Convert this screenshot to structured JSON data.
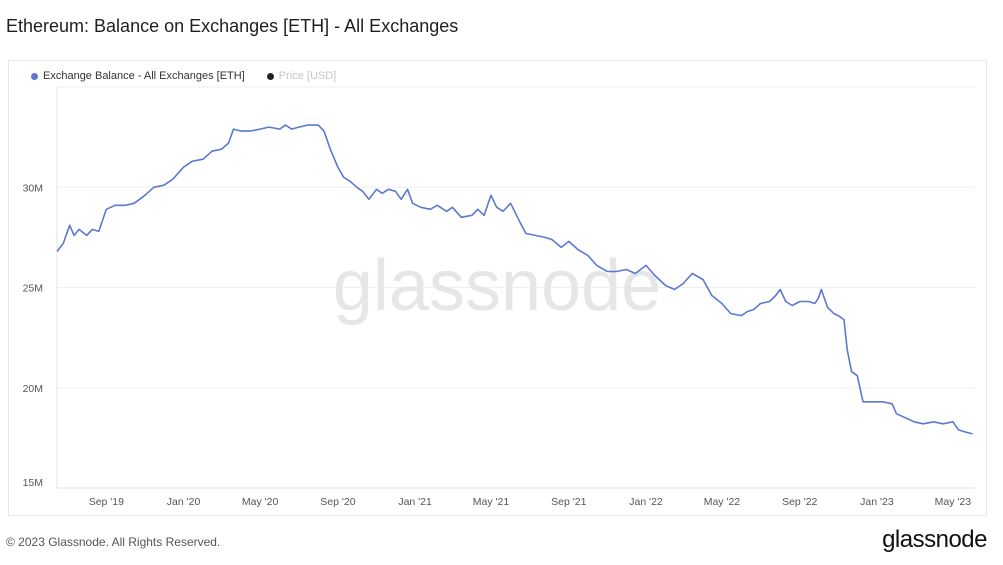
{
  "title": "Ethereum: Balance on Exchanges [ETH] - All Exchanges",
  "legend": {
    "items": [
      {
        "label": "Exchange Balance - All Exchanges [ETH]",
        "color": "#5b79cf",
        "active": true
      },
      {
        "label": "Price [USD]",
        "color": "#222222",
        "active": false
      }
    ]
  },
  "watermark": "glassnode",
  "footer": {
    "copyright": "© 2023 Glassnode. All Rights Reserved.",
    "logo": "glassnode"
  },
  "chart_data": {
    "type": "line",
    "title": "Ethereum: Balance on Exchanges [ETH] - All Exchanges",
    "xlabel": "",
    "ylabel": "",
    "ylim": [
      15000000,
      35000000
    ],
    "xlim": [
      "2019-06-15",
      "2023-06-05"
    ],
    "y_ticks": [
      {
        "value": 15000000,
        "label": "15M"
      },
      {
        "value": 20000000,
        "label": "20M"
      },
      {
        "value": 25000000,
        "label": "25M"
      },
      {
        "value": 30000000,
        "label": "30M"
      }
    ],
    "x_ticks": [
      {
        "value": "2019-09-01",
        "label": "Sep '19"
      },
      {
        "value": "2020-01-01",
        "label": "Jan '20"
      },
      {
        "value": "2020-05-01",
        "label": "May '20"
      },
      {
        "value": "2020-09-01",
        "label": "Sep '20"
      },
      {
        "value": "2021-01-01",
        "label": "Jan '21"
      },
      {
        "value": "2021-05-01",
        "label": "May '21"
      },
      {
        "value": "2021-09-01",
        "label": "Sep '21"
      },
      {
        "value": "2022-01-01",
        "label": "Jan '22"
      },
      {
        "value": "2022-05-01",
        "label": "May '22"
      },
      {
        "value": "2022-09-01",
        "label": "Sep '22"
      },
      {
        "value": "2023-01-01",
        "label": "Jan '23"
      },
      {
        "value": "2023-05-01",
        "label": "May '23"
      }
    ],
    "grid": {
      "horizontal": true,
      "vertical": false
    },
    "legend_position": "top-left",
    "series": [
      {
        "name": "Exchange Balance - All Exchanges [ETH]",
        "color": "#5b79cf",
        "points": [
          [
            "2019-06-15",
            26800000
          ],
          [
            "2019-06-25",
            27200000
          ],
          [
            "2019-07-05",
            28100000
          ],
          [
            "2019-07-12",
            27600000
          ],
          [
            "2019-07-20",
            27900000
          ],
          [
            "2019-08-01",
            27600000
          ],
          [
            "2019-08-10",
            27900000
          ],
          [
            "2019-08-20",
            27800000
          ],
          [
            "2019-09-01",
            28900000
          ],
          [
            "2019-09-15",
            29100000
          ],
          [
            "2019-10-01",
            29100000
          ],
          [
            "2019-10-15",
            29200000
          ],
          [
            "2019-11-01",
            29600000
          ],
          [
            "2019-11-15",
            30000000
          ],
          [
            "2019-12-01",
            30100000
          ],
          [
            "2019-12-15",
            30400000
          ],
          [
            "2020-01-01",
            31000000
          ],
          [
            "2020-01-15",
            31300000
          ],
          [
            "2020-02-01",
            31400000
          ],
          [
            "2020-02-15",
            31800000
          ],
          [
            "2020-03-01",
            31900000
          ],
          [
            "2020-03-12",
            32200000
          ],
          [
            "2020-03-20",
            32900000
          ],
          [
            "2020-04-01",
            32800000
          ],
          [
            "2020-04-15",
            32800000
          ],
          [
            "2020-05-01",
            32900000
          ],
          [
            "2020-05-15",
            33000000
          ],
          [
            "2020-06-01",
            32900000
          ],
          [
            "2020-06-10",
            33100000
          ],
          [
            "2020-06-20",
            32900000
          ],
          [
            "2020-07-01",
            33000000
          ],
          [
            "2020-07-15",
            33100000
          ],
          [
            "2020-08-01",
            33100000
          ],
          [
            "2020-08-10",
            32800000
          ],
          [
            "2020-08-20",
            31900000
          ],
          [
            "2020-09-01",
            31000000
          ],
          [
            "2020-09-10",
            30500000
          ],
          [
            "2020-09-20",
            30300000
          ],
          [
            "2020-10-01",
            30000000
          ],
          [
            "2020-10-10",
            29800000
          ],
          [
            "2020-10-20",
            29400000
          ],
          [
            "2020-11-01",
            29900000
          ],
          [
            "2020-11-10",
            29700000
          ],
          [
            "2020-11-20",
            29900000
          ],
          [
            "2020-12-01",
            29800000
          ],
          [
            "2020-12-10",
            29400000
          ],
          [
            "2020-12-20",
            29900000
          ],
          [
            "2020-12-28",
            29200000
          ],
          [
            "2021-01-10",
            29000000
          ],
          [
            "2021-01-25",
            28900000
          ],
          [
            "2021-02-05",
            29100000
          ],
          [
            "2021-02-20",
            28800000
          ],
          [
            "2021-03-01",
            29000000
          ],
          [
            "2021-03-15",
            28500000
          ],
          [
            "2021-04-01",
            28600000
          ],
          [
            "2021-04-10",
            28900000
          ],
          [
            "2021-04-20",
            28600000
          ],
          [
            "2021-05-01",
            29600000
          ],
          [
            "2021-05-10",
            29000000
          ],
          [
            "2021-05-20",
            28800000
          ],
          [
            "2021-06-01",
            29200000
          ],
          [
            "2021-06-15",
            28300000
          ],
          [
            "2021-06-25",
            27700000
          ],
          [
            "2021-07-10",
            27600000
          ],
          [
            "2021-07-25",
            27500000
          ],
          [
            "2021-08-05",
            27400000
          ],
          [
            "2021-08-20",
            27000000
          ],
          [
            "2021-09-01",
            27300000
          ],
          [
            "2021-09-15",
            26900000
          ],
          [
            "2021-10-01",
            26600000
          ],
          [
            "2021-10-15",
            26100000
          ],
          [
            "2021-11-01",
            25800000
          ],
          [
            "2021-11-15",
            25800000
          ],
          [
            "2021-12-01",
            25900000
          ],
          [
            "2021-12-15",
            25700000
          ],
          [
            "2022-01-01",
            26100000
          ],
          [
            "2022-01-15",
            25600000
          ],
          [
            "2022-02-01",
            25100000
          ],
          [
            "2022-02-15",
            24900000
          ],
          [
            "2022-03-01",
            25200000
          ],
          [
            "2022-03-15",
            25700000
          ],
          [
            "2022-04-01",
            25400000
          ],
          [
            "2022-04-15",
            24600000
          ],
          [
            "2022-05-01",
            24200000
          ],
          [
            "2022-05-15",
            23700000
          ],
          [
            "2022-06-01",
            23600000
          ],
          [
            "2022-06-10",
            23800000
          ],
          [
            "2022-06-20",
            23900000
          ],
          [
            "2022-07-01",
            24200000
          ],
          [
            "2022-07-15",
            24300000
          ],
          [
            "2022-07-25",
            24600000
          ],
          [
            "2022-08-01",
            24900000
          ],
          [
            "2022-08-10",
            24300000
          ],
          [
            "2022-08-20",
            24100000
          ],
          [
            "2022-09-01",
            24300000
          ],
          [
            "2022-09-15",
            24300000
          ],
          [
            "2022-09-25",
            24200000
          ],
          [
            "2022-10-01",
            24500000
          ],
          [
            "2022-10-05",
            24900000
          ],
          [
            "2022-10-15",
            24000000
          ],
          [
            "2022-10-25",
            23700000
          ],
          [
            "2022-11-01",
            23600000
          ],
          [
            "2022-11-10",
            23400000
          ],
          [
            "2022-11-15",
            21900000
          ],
          [
            "2022-11-22",
            20800000
          ],
          [
            "2022-12-01",
            20600000
          ],
          [
            "2022-12-10",
            19300000
          ],
          [
            "2022-12-25",
            19300000
          ],
          [
            "2023-01-10",
            19300000
          ],
          [
            "2023-01-25",
            19200000
          ],
          [
            "2023-02-01",
            18700000
          ],
          [
            "2023-02-15",
            18500000
          ],
          [
            "2023-03-01",
            18300000
          ],
          [
            "2023-03-15",
            18200000
          ],
          [
            "2023-04-01",
            18300000
          ],
          [
            "2023-04-15",
            18200000
          ],
          [
            "2023-05-01",
            18300000
          ],
          [
            "2023-05-10",
            17900000
          ],
          [
            "2023-05-20",
            17800000
          ],
          [
            "2023-06-01",
            17700000
          ]
        ]
      }
    ]
  }
}
